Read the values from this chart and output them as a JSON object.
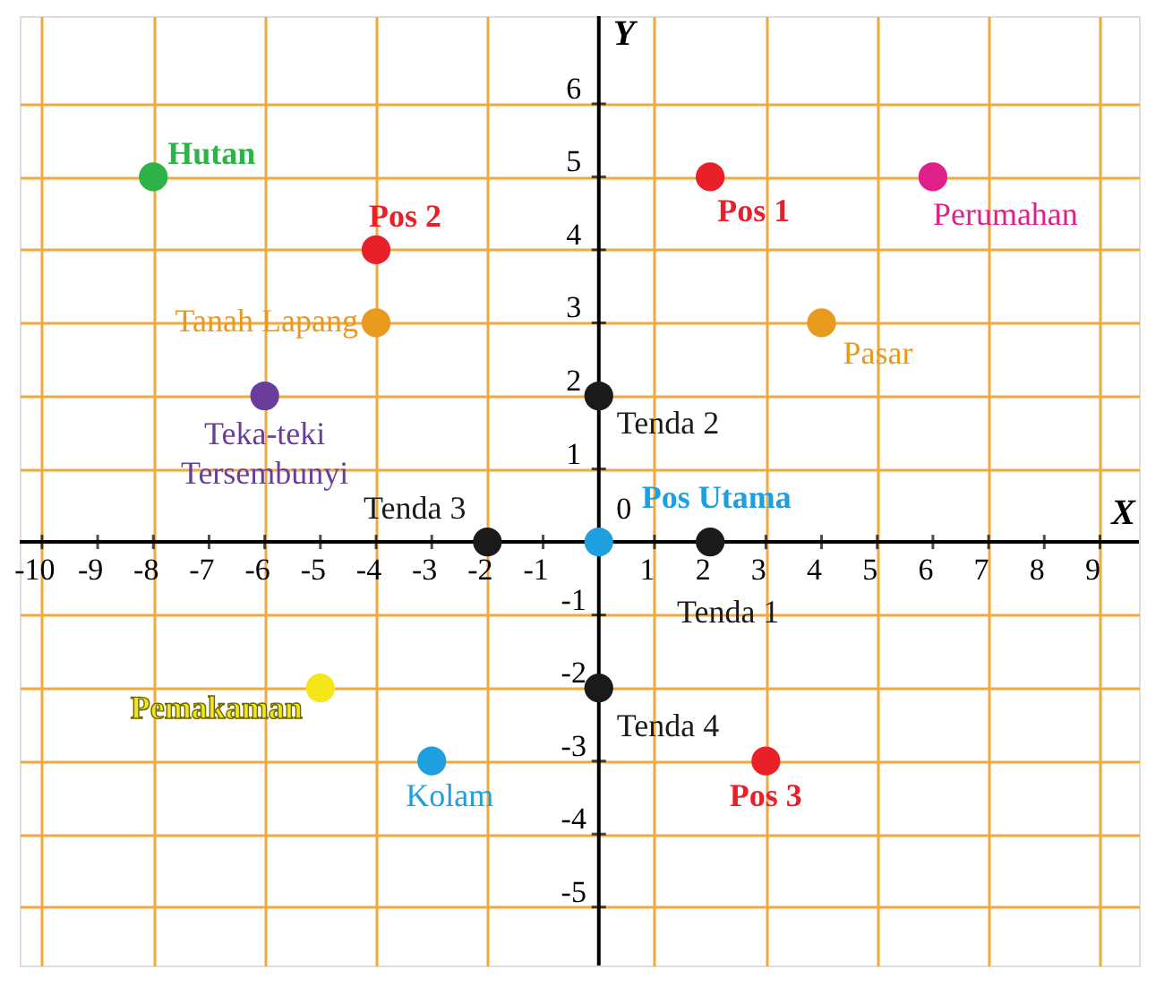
{
  "chart_data": {
    "type": "scatter",
    "xlabel": "X",
    "ylabel": "Y",
    "xlim": [
      -10.4,
      9.7
    ],
    "ylim": [
      -5.8,
      7.2
    ],
    "xticks": [
      -10,
      -9,
      -8,
      -7,
      -6,
      -5,
      -4,
      -3,
      -2,
      -1,
      1,
      2,
      3,
      4,
      5,
      6,
      7,
      8,
      9
    ],
    "yticks": [
      -5,
      -4,
      -3,
      -2,
      -1,
      1,
      2,
      3,
      4,
      5,
      6
    ],
    "grid": true,
    "marker": "circle",
    "annotations": [
      {
        "text": "0",
        "x": 0,
        "y": 0
      }
    ],
    "series": [
      {
        "name": "Hutan",
        "color": "#2db34a",
        "x": [
          -8
        ],
        "values": [
          5
        ]
      },
      {
        "name": "Pos 2",
        "color": "#e8202a",
        "x": [
          -4
        ],
        "values": [
          4
        ]
      },
      {
        "name": "Tanah Lapang",
        "color": "#e89a1e",
        "x": [
          -4
        ],
        "values": [
          3
        ]
      },
      {
        "name": "Teka-teki Tersembunyi",
        "color": "#6a3d9a",
        "x": [
          -6
        ],
        "values": [
          2
        ]
      },
      {
        "name": "Tenda 3",
        "color": "#1a1a1a",
        "x": [
          -2
        ],
        "values": [
          0
        ]
      },
      {
        "name": "Pos Utama",
        "color": "#1ea0e0",
        "x": [
          0
        ],
        "values": [
          0
        ]
      },
      {
        "name": "Tenda 2",
        "color": "#1a1a1a",
        "x": [
          0
        ],
        "values": [
          2
        ]
      },
      {
        "name": "Tenda 1",
        "color": "#1a1a1a",
        "x": [
          2
        ],
        "values": [
          0
        ]
      },
      {
        "name": "Tenda 4",
        "color": "#1a1a1a",
        "x": [
          0
        ],
        "values": [
          -2
        ]
      },
      {
        "name": "Pemakaman",
        "color": "#f5e61a",
        "x": [
          -5
        ],
        "values": [
          -2
        ]
      },
      {
        "name": "Kolam",
        "color": "#1ea0e0",
        "x": [
          -3
        ],
        "values": [
          -3
        ]
      },
      {
        "name": "Pos 3",
        "color": "#e8202a",
        "x": [
          3
        ],
        "values": [
          -3
        ]
      },
      {
        "name": "Pos 1",
        "color": "#e8202a",
        "x": [
          2
        ],
        "values": [
          5
        ]
      },
      {
        "name": "Perumahan",
        "color": "#e0208a",
        "x": [
          6
        ],
        "values": [
          5
        ]
      },
      {
        "name": "Pasar",
        "color": "#e89a1e",
        "x": [
          4
        ],
        "values": [
          3
        ]
      }
    ]
  }
}
